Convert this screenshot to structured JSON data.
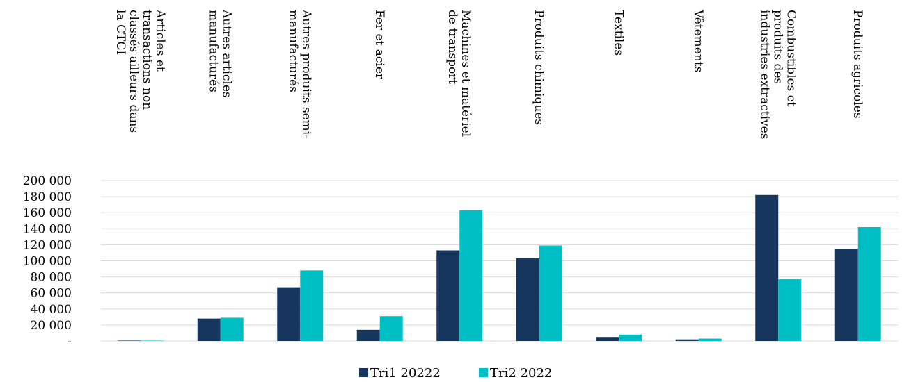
{
  "chart_data": {
    "type": "bar",
    "categories": [
      "Articles et transactions non classés ailleurs dans la CTCI",
      "Autres articles manufacturés",
      "Autres produits semi-manufacturés",
      "Fer et acier",
      "Machines et matériel de transport",
      "Produits chimiques",
      "Textiles",
      "Vêtements",
      "Combustibles et produits des industries extractives",
      "Produits agricoles"
    ],
    "category_lines": [
      [
        "Articles et",
        "transactions non",
        "classés ailleurs dans",
        "la CTCI"
      ],
      [
        "Autres articles",
        "manufacturés"
      ],
      [
        "Autres produits semi-",
        "manufacturés"
      ],
      [
        "Fer et acier"
      ],
      [
        "Machines et matériel",
        "de transport"
      ],
      [
        "Produits chimiques"
      ],
      [
        "Textiles"
      ],
      [
        "Vêtements"
      ],
      [
        "Combustibles et",
        "produits des",
        "industries extractives"
      ],
      [
        "Produits agricoles"
      ]
    ],
    "series": [
      {
        "name": "Tri1  20222",
        "color": "#17365d",
        "values": [
          500,
          28000,
          67000,
          14000,
          113000,
          103000,
          5000,
          2000,
          182000,
          115000
        ]
      },
      {
        "name": "Tri2  2022",
        "color": "#00bfc4",
        "values": [
          300,
          29000,
          88000,
          31000,
          163000,
          119000,
          8000,
          3000,
          77000,
          142000
        ]
      }
    ],
    "ylim": [
      0,
      200000
    ],
    "yticks": [
      0,
      20000,
      40000,
      60000,
      80000,
      100000,
      120000,
      140000,
      160000,
      180000,
      200000
    ],
    "ytick_labels": [
      "-",
      "20 000",
      "40 000",
      "60 000",
      "80 000",
      "100 000",
      "120 000",
      "140 000",
      "160 000",
      "180 000",
      "200 000"
    ],
    "grid": true,
    "legend_position": "bottom-center",
    "xlabel": "",
    "ylabel": "",
    "title": ""
  }
}
